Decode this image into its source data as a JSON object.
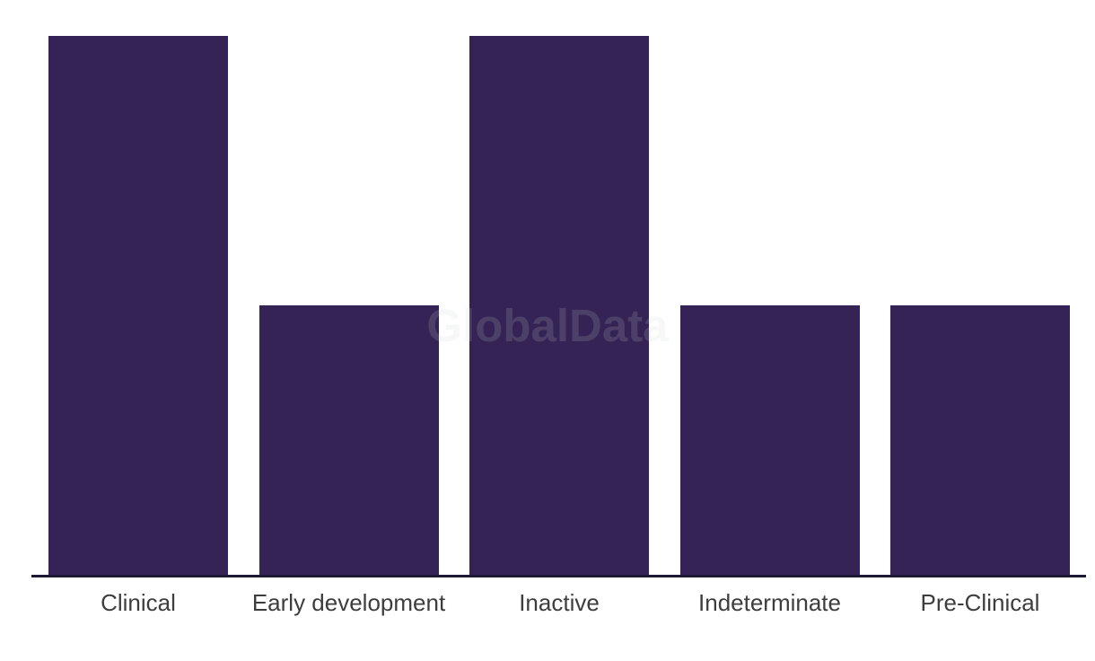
{
  "chart_data": {
    "type": "bar",
    "title": "",
    "categories": [
      "Clinical",
      "Early development",
      "Inactive",
      "Indeterminate",
      "Pre-Clinical"
    ],
    "values": [
      2,
      1,
      2,
      1,
      1
    ],
    "xlabel": "",
    "ylabel": "",
    "ylim": [
      0,
      2
    ],
    "grid": false,
    "legend": false,
    "bar_color": "#352355",
    "axis_line_color": "#1b1a36",
    "category_label_color": "#3d3d3d",
    "background_color": "#ffffff"
  },
  "watermark": {
    "text": "GlobalData"
  }
}
